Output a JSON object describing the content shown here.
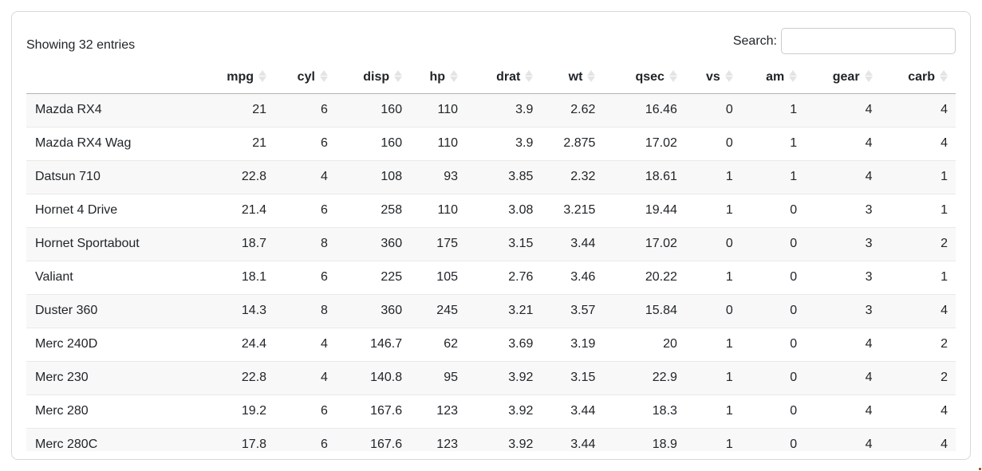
{
  "panel": {
    "showing_text": "Showing 32 entries",
    "search": {
      "label": "Search:",
      "value": ""
    }
  },
  "table": {
    "columns": [
      "",
      "mpg",
      "cyl",
      "disp",
      "hp",
      "drat",
      "wt",
      "qsec",
      "vs",
      "am",
      "gear",
      "carb"
    ],
    "column_widths_pct": [
      20.1,
      6.6,
      6.6,
      8.0,
      6.0,
      8.1,
      6.7,
      8.8,
      6.0,
      6.9,
      8.1,
      8.1
    ],
    "rows": [
      {
        "name": "Mazda RX4",
        "values": [
          "21",
          "6",
          "160",
          "110",
          "3.9",
          "2.62",
          "16.46",
          "0",
          "1",
          "4",
          "4"
        ]
      },
      {
        "name": "Mazda RX4 Wag",
        "values": [
          "21",
          "6",
          "160",
          "110",
          "3.9",
          "2.875",
          "17.02",
          "0",
          "1",
          "4",
          "4"
        ]
      },
      {
        "name": "Datsun 710",
        "values": [
          "22.8",
          "4",
          "108",
          "93",
          "3.85",
          "2.32",
          "18.61",
          "1",
          "1",
          "4",
          "1"
        ]
      },
      {
        "name": "Hornet 4 Drive",
        "values": [
          "21.4",
          "6",
          "258",
          "110",
          "3.08",
          "3.215",
          "19.44",
          "1",
          "0",
          "3",
          "1"
        ]
      },
      {
        "name": "Hornet Sportabout",
        "values": [
          "18.7",
          "8",
          "360",
          "175",
          "3.15",
          "3.44",
          "17.02",
          "0",
          "0",
          "3",
          "2"
        ]
      },
      {
        "name": "Valiant",
        "values": [
          "18.1",
          "6",
          "225",
          "105",
          "2.76",
          "3.46",
          "20.22",
          "1",
          "0",
          "3",
          "1"
        ]
      },
      {
        "name": "Duster 360",
        "values": [
          "14.3",
          "8",
          "360",
          "245",
          "3.21",
          "3.57",
          "15.84",
          "0",
          "0",
          "3",
          "4"
        ]
      },
      {
        "name": "Merc 240D",
        "values": [
          "24.4",
          "4",
          "146.7",
          "62",
          "3.69",
          "3.19",
          "20",
          "1",
          "0",
          "4",
          "2"
        ]
      },
      {
        "name": "Merc 230",
        "values": [
          "22.8",
          "4",
          "140.8",
          "95",
          "3.92",
          "3.15",
          "22.9",
          "1",
          "0",
          "4",
          "2"
        ]
      },
      {
        "name": "Merc 280",
        "values": [
          "19.2",
          "6",
          "167.6",
          "123",
          "3.92",
          "3.44",
          "18.3",
          "1",
          "0",
          "4",
          "4"
        ]
      },
      {
        "name": "Merc 280C",
        "values": [
          "17.8",
          "6",
          "167.6",
          "123",
          "3.92",
          "3.44",
          "18.9",
          "1",
          "0",
          "4",
          "4"
        ]
      }
    ]
  },
  "icons": {
    "sort": "sort-both-icon"
  },
  "colors": {
    "text": "#212529",
    "stripe": "#f8f8f8",
    "row_border": "#e9e9e9",
    "header_border": "#b3b3b3",
    "container_border": "#d8d8d8",
    "sort_icon": "#e4e4e4"
  }
}
